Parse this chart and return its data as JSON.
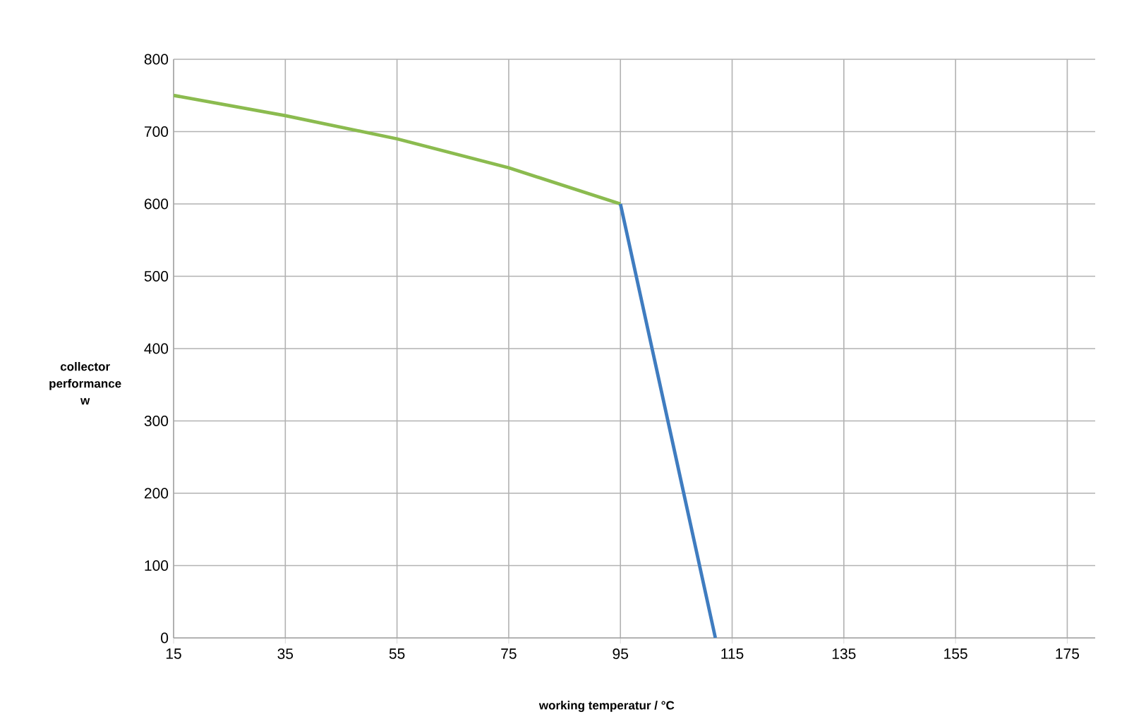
{
  "chart_data": {
    "type": "line",
    "xlabel": "working temperatur / °C",
    "ylabel": "collector performance w",
    "xlim": [
      15,
      180
    ],
    "xticks": [
      15,
      35,
      55,
      75,
      95,
      115,
      135,
      155,
      175
    ],
    "ylim": [
      0,
      800
    ],
    "yticks": [
      0,
      100,
      200,
      300,
      400,
      500,
      600,
      700,
      800
    ],
    "grid": true,
    "series": [
      {
        "color": "#8bbb4f",
        "x": [
          15,
          35,
          55,
          75,
          95
        ],
        "values": [
          750,
          722,
          690,
          650,
          600
        ]
      },
      {
        "color": "#3f7cc0",
        "x": [
          95,
          112
        ],
        "values": [
          600,
          0
        ]
      }
    ]
  }
}
